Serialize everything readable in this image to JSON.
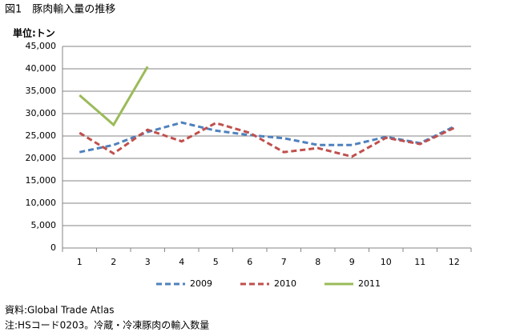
{
  "chart_data": {
    "type": "line",
    "title": "図1　豚肉輸入量の推移",
    "unit_label": "単位:トン",
    "categories": [
      "1",
      "2",
      "3",
      "4",
      "5",
      "6",
      "7",
      "8",
      "9",
      "10",
      "11",
      "12"
    ],
    "series": [
      {
        "name": "2009",
        "color": "#4f81bd",
        "dash": true,
        "values": [
          21400,
          23000,
          25900,
          28000,
          26200,
          25200,
          24500,
          23000,
          23000,
          24800,
          23400,
          27100
        ]
      },
      {
        "name": "2010",
        "color": "#c0504d",
        "dash": true,
        "values": [
          25700,
          21100,
          26400,
          23800,
          27900,
          25700,
          21400,
          22300,
          20400,
          24600,
          23200,
          26800
        ]
      },
      {
        "name": "2011",
        "color": "#9bbb59",
        "dash": false,
        "values": [
          34100,
          27500,
          40500,
          null,
          null,
          null,
          null,
          null,
          null,
          null,
          null,
          null
        ]
      }
    ],
    "ylim": [
      0,
      45000
    ],
    "yticks": [
      0,
      {
        "value": 5000,
        "label": "5,000"
      },
      {
        "value": 10000,
        "label": "10,000"
      },
      {
        "value": 15000,
        "label": "15,000"
      },
      {
        "value": 20000,
        "label": "20,000"
      },
      {
        "value": 25000,
        "label": "25,000"
      },
      {
        "value": 30000,
        "label": "30,000"
      },
      {
        "value": 35000,
        "label": "35,000"
      },
      {
        "value": 40000,
        "label": "40,000"
      },
      {
        "value": 45000,
        "label": "45,000"
      }
    ],
    "grid": true,
    "legend": "bottom",
    "notes": [
      "資料:Global Trade Atlas",
      "注:HSコード0203。冷蔵・冷凍豚肉の輸入数量"
    ]
  }
}
